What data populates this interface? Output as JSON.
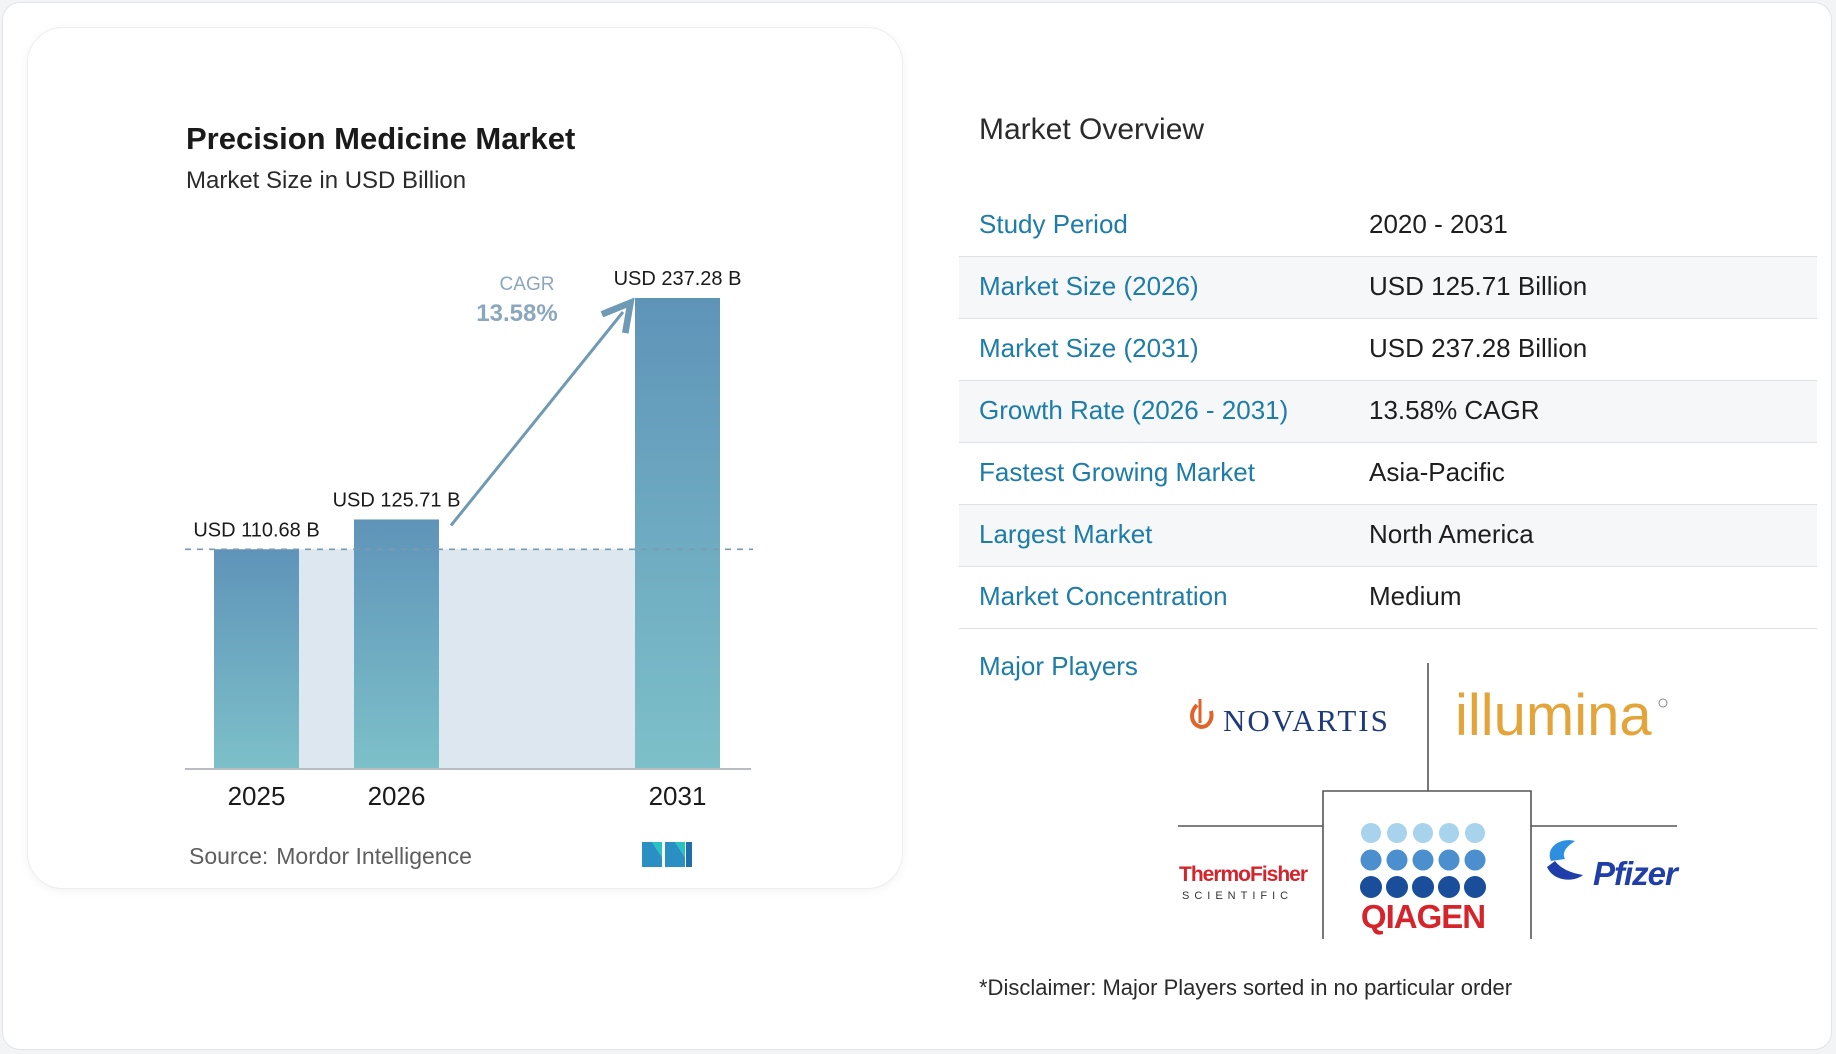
{
  "chart_data": {
    "type": "bar",
    "title": "Precision Medicine Market",
    "subtitle": "Market Size in USD Billion",
    "categories": [
      "2025",
      "2026",
      "2031"
    ],
    "values": [
      110.68,
      125.71,
      237.28
    ],
    "value_labels": [
      "USD 110.68 B",
      "USD 125.71 B",
      "USD 237.28 B"
    ],
    "cagr_label": "CAGR",
    "cagr_value": "13.58%",
    "source_label": "Source:",
    "source_name": "Mordor Intelligence",
    "grid": false,
    "bar_color_top": "#5f94b9",
    "bar_color_bottom": "#7dc0c9",
    "band_color": "#dde7f0",
    "arrow_color": "#6f9ab6"
  },
  "overview": {
    "title": "Market Overview",
    "rows": [
      {
        "label": "Study Period",
        "value": "2020 - 2031"
      },
      {
        "label": "Market Size (2026)",
        "value": "USD 125.71 Billion"
      },
      {
        "label": "Market Size (2031)",
        "value": "USD 237.28 Billion"
      },
      {
        "label": "Growth Rate (2026 - 2031)",
        "value": "13.58% CAGR"
      },
      {
        "label": "Fastest Growing Market",
        "value": "Asia-Pacific"
      },
      {
        "label": "Largest Market",
        "value": "North America"
      },
      {
        "label": "Market Concentration",
        "value": "Medium"
      }
    ]
  },
  "players": {
    "label": "Major Players",
    "logos": [
      "NOVARTIS",
      "illumina",
      "ThermoFisher",
      "SCIENTIFIC",
      "QIAGEN",
      "Pfizer"
    ]
  },
  "disclaimer": "*Disclaimer: Major Players sorted in no particular order",
  "colors": {
    "label_blue": "#1d7ca8",
    "qiagen_red": "#d5242c",
    "pfizer_blue": "#1f3ea8",
    "novartis_orange": "#e2622a"
  }
}
